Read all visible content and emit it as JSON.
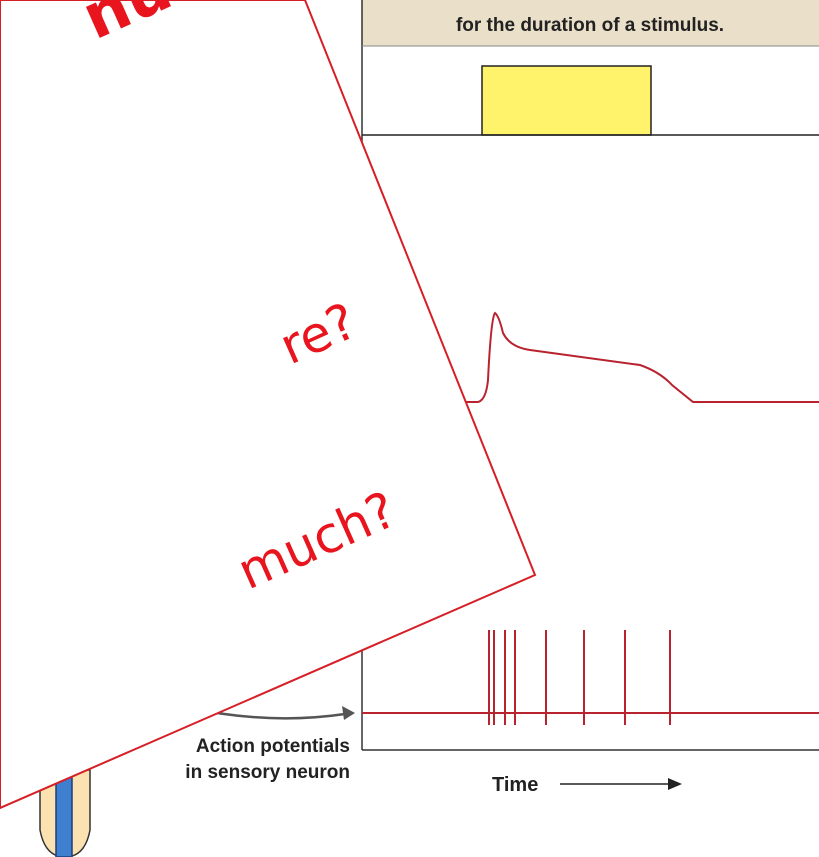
{
  "figure": {
    "banner": "for the duration of a stimulus.",
    "caption_lines": [
      "Action potentials",
      "in sensory neuron"
    ],
    "time_label": "Time"
  },
  "card": {
    "lines": [
      "nu",
      "re?",
      "much?"
    ]
  }
}
